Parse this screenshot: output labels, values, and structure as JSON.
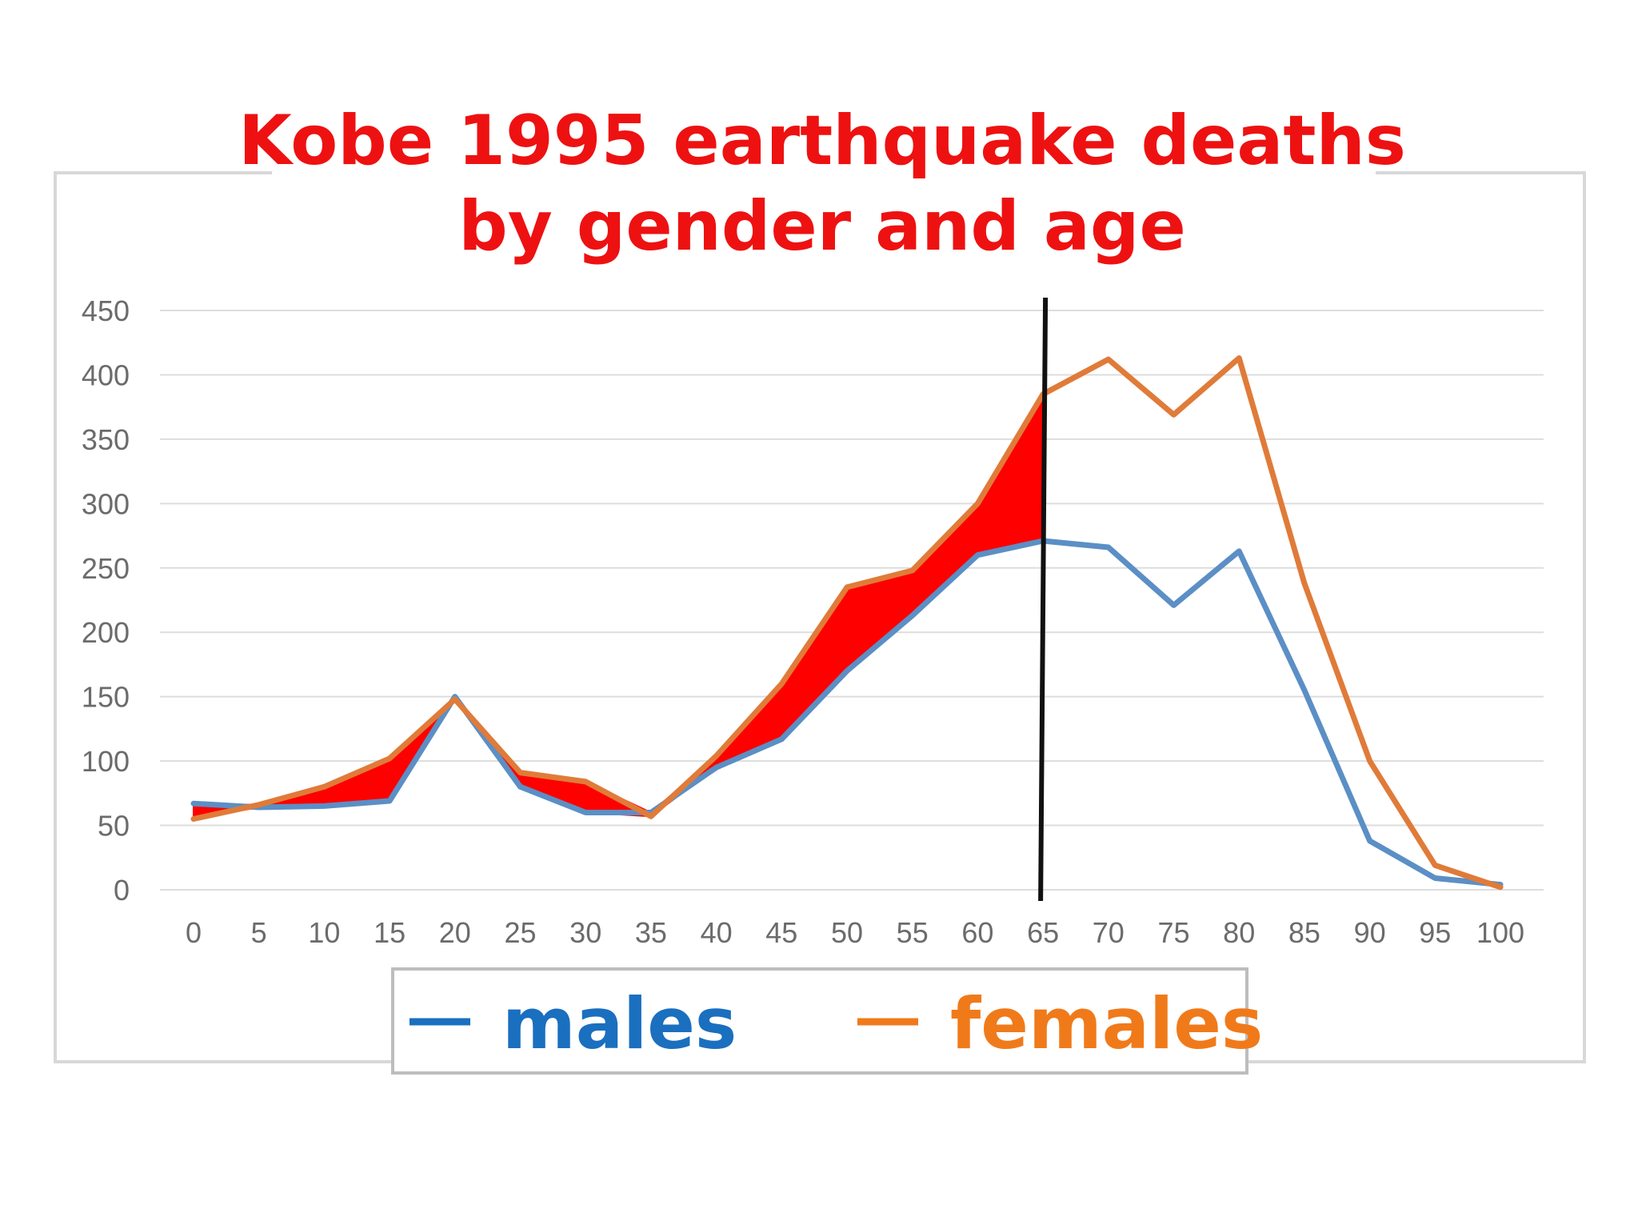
{
  "chart_data": {
    "type": "line",
    "title": [
      "Kobe 1995 earthquake deaths",
      "by gender and age"
    ],
    "xlabel": "",
    "ylabel": "",
    "x": [
      "0",
      "5",
      "10",
      "15",
      "20",
      "25",
      "30",
      "35",
      "40",
      "45",
      "50",
      "55",
      "60",
      "65",
      "70",
      "75",
      "80",
      "85",
      "90",
      "95",
      "100"
    ],
    "ylim": [
      0,
      450
    ],
    "yticks": [
      "450",
      "400",
      "350",
      "300",
      "250",
      "200",
      "150",
      "100",
      "50",
      "0"
    ],
    "grid": "horizontal",
    "series": [
      {
        "name": "males",
        "color": "#5b8fc5",
        "values": [
          67,
          64,
          65,
          69,
          150,
          80,
          60,
          60,
          95,
          117,
          170,
          213,
          260,
          271,
          266,
          221,
          263,
          155,
          38,
          9,
          4
        ]
      },
      {
        "name": "females",
        "color": "#e07b39",
        "values": [
          55,
          66,
          80,
          102,
          148,
          91,
          84,
          57,
          104,
          160,
          235,
          248,
          300,
          385,
          412,
          369,
          413,
          238,
          100,
          19,
          2
        ]
      }
    ],
    "highlight": {
      "fill": "#ff0000",
      "from_x": "0",
      "to_x": "65",
      "description_color": "#ff0000"
    },
    "vertical_marker": {
      "x": "65",
      "color": "#111111"
    },
    "legend": {
      "placement": "bottom",
      "items": [
        {
          "label": "males",
          "color": "#1a6fbf"
        },
        {
          "label": "females",
          "color": "#f07a1a"
        }
      ]
    }
  }
}
